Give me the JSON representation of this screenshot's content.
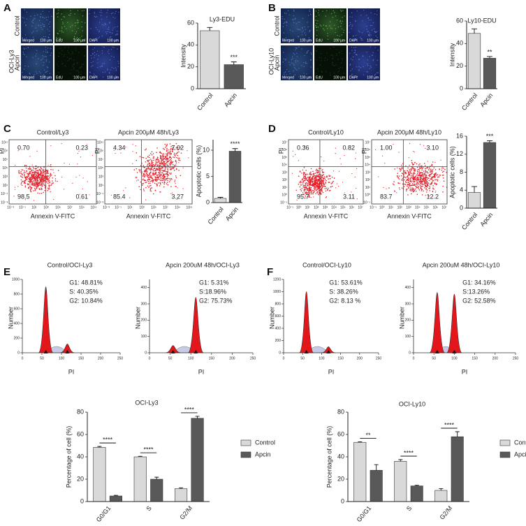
{
  "panel_labels": [
    "A",
    "B",
    "C",
    "D",
    "E",
    "F"
  ],
  "microscopy": [
    {
      "cell_line": "OCI-Ly3",
      "rows": [
        "Control",
        "Apcin"
      ],
      "channels": [
        "Merged",
        "EdU",
        "DAPI"
      ],
      "scale_bar": "100 µm"
    },
    {
      "cell_line": "OCI-Ly10",
      "rows": [
        "Control",
        "Apcin"
      ],
      "channels": [
        "Merged",
        "EdU",
        "DAPI"
      ],
      "scale_bar": "100 µm"
    }
  ],
  "flow": [
    {
      "xlabel": "Annexin V-FITC",
      "ylabel": "PI",
      "ticks": [
        "10⁻³",
        "10⁻¹",
        "10¹",
        "10³",
        "10⁵",
        "10⁷",
        "10⁹",
        "10¹¹"
      ],
      "plots": [
        {
          "title": "Control/Ly3",
          "quadrants": [
            "0.70",
            "0.23",
            "98.5",
            "0.61"
          ]
        },
        {
          "title": "Apcin 200μM 48h/Ly3",
          "quadrants": [
            "4.34",
            "7.02",
            "85.4",
            "3.27"
          ]
        }
      ]
    },
    {
      "xlabel": "Annexin V-FITC",
      "ylabel": "PI",
      "ticks": [
        "10⁻¹",
        "10⁰",
        "10¹",
        "10²",
        "10³",
        "10⁴",
        "10⁵",
        "10⁶",
        "10⁷"
      ],
      "plots": [
        {
          "title": "Control/Ly10",
          "quadrants": [
            "0.36",
            "0.82",
            "95.7",
            "3.11"
          ]
        },
        {
          "title": "Apcin 200μM 48h/Ly10",
          "quadrants": [
            "1.00",
            "3.10",
            "83.7",
            "12.2"
          ]
        }
      ]
    }
  ],
  "cell_cycle": [
    {
      "title": "Control/OCI-Ly3",
      "stats": [
        "G1: 48.81%",
        "S: 40.35%",
        "G2: 10.84%"
      ],
      "xlabel": "PI",
      "ylabel": "Number",
      "xlim": [
        0,
        250
      ],
      "xticks": [
        0,
        50,
        100,
        150,
        200,
        250
      ],
      "ylim": [
        0,
        1000
      ],
      "yticks": [
        0,
        200,
        400,
        600,
        800,
        1000
      ],
      "peaks": [
        {
          "x": 60,
          "count": 900
        },
        {
          "x": 115,
          "count": 120
        }
      ]
    },
    {
      "title": "Apcin 200uM 48h/OCI-Ly3",
      "stats": [
        "G1: 5.31%",
        "S:18.96%",
        "G2: 75.73%"
      ],
      "xlabel": "PI",
      "ylabel": "Number",
      "xlim": [
        0,
        250
      ],
      "xticks": [
        0,
        50,
        100,
        150,
        200,
        250
      ],
      "ylim": [
        0,
        450
      ],
      "yticks": [
        0,
        100,
        200,
        300,
        400
      ],
      "peaks": [
        {
          "x": 57,
          "count": 45
        },
        {
          "x": 112,
          "count": 340
        }
      ]
    },
    {
      "title": "Control/OCI-Ly10",
      "stats": [
        "G1: 53.61%",
        "S: 38.26%",
        "G2: 8.13 %"
      ],
      "xlabel": "PI",
      "ylabel": "Number",
      "xlim": [
        0,
        250
      ],
      "xticks": [
        0,
        50,
        100,
        150,
        200,
        250
      ],
      "ylim": [
        0,
        1200
      ],
      "yticks": [
        0,
        200,
        400,
        600,
        800,
        1000,
        1200
      ],
      "peaks": [
        {
          "x": 60,
          "count": 1000
        },
        {
          "x": 118,
          "count": 100
        }
      ]
    },
    {
      "title": "Apcin 200uM 48h/OCI-Ly10",
      "stats": [
        "G1: 34.16%",
        "S:13.26%",
        "G2: 52.58%"
      ],
      "xlabel": "PI",
      "ylabel": "Number",
      "xlim": [
        0,
        250
      ],
      "xticks": [
        0,
        50,
        100,
        150,
        200,
        250
      ],
      "ylim": [
        0,
        450
      ],
      "yticks": [
        0,
        100,
        200,
        300,
        400
      ],
      "peaks": [
        {
          "x": 58,
          "count": 370
        },
        {
          "x": 100,
          "count": 360
        }
      ]
    }
  ],
  "chart_data": [
    {
      "type": "bar",
      "title": "Ly3-EDU",
      "ylabel": "Intensity",
      "categories": [
        "Control",
        "Apcin"
      ],
      "values": [
        53,
        22
      ],
      "errors": [
        3,
        2.5
      ],
      "colors": [
        "#d9d9d9",
        "#595959"
      ],
      "significance": "***",
      "ylim": [
        0,
        60
      ],
      "yticks": [
        0,
        20,
        40,
        60
      ]
    },
    {
      "type": "bar",
      "title": "Ly10-EDU",
      "ylabel": "Intensity",
      "categories": [
        "Control",
        "Apcin"
      ],
      "values": [
        49,
        27
      ],
      "errors": [
        4,
        1.5
      ],
      "colors": [
        "#d9d9d9",
        "#595959"
      ],
      "significance": "**",
      "ylim": [
        0,
        60
      ],
      "yticks": [
        0,
        20,
        40,
        60
      ]
    },
    {
      "type": "bar",
      "ylabel": "Apoptotic cells (%)",
      "categories": [
        "Control",
        "Apcin"
      ],
      "values": [
        0.8,
        9.8
      ],
      "errors": [
        0.2,
        0.5
      ],
      "colors": [
        "#d9d9d9",
        "#595959"
      ],
      "significance": "****",
      "ylim": [
        0,
        12
      ],
      "yticks": [
        0,
        5,
        10
      ]
    },
    {
      "type": "bar",
      "ylabel": "Apoptotic cells (%)",
      "categories": [
        "Control",
        "Apcin"
      ],
      "values": [
        3.5,
        14.6
      ],
      "errors": [
        1.3,
        0.4
      ],
      "colors": [
        "#d9d9d9",
        "#595959"
      ],
      "significance": "***",
      "ylim": [
        0,
        16
      ],
      "yticks": [
        0,
        4,
        8,
        12,
        16
      ]
    },
    {
      "type": "grouped_bar",
      "title": "OCI-Ly3",
      "ylabel": "Percentage of cell (%)",
      "categories": [
        "G0/G1",
        "S",
        "G2/M"
      ],
      "series": [
        {
          "name": "Control",
          "color": "#d9d9d9",
          "values": [
            48.5,
            40,
            11.5
          ],
          "errors": [
            0.8,
            0.5,
            0.8
          ]
        },
        {
          "name": "Apcin",
          "color": "#595959",
          "values": [
            5,
            20,
            74.5
          ],
          "errors": [
            0.6,
            1.8,
            1.8
          ]
        }
      ],
      "significance": [
        "****",
        "****",
        "****"
      ],
      "ylim": [
        0,
        80
      ],
      "yticks": [
        0,
        20,
        40,
        60,
        80
      ]
    },
    {
      "type": "grouped_bar",
      "title": "OCI-Ly10",
      "ylabel": "Percentage of cell (%)",
      "categories": [
        "G0/G1",
        "S",
        "G2/M"
      ],
      "series": [
        {
          "name": "Control",
          "color": "#d9d9d9",
          "values": [
            53,
            36,
            10
          ],
          "errors": [
            0.5,
            1.5,
            1.5
          ]
        },
        {
          "name": "Apcin",
          "color": "#595959",
          "values": [
            28,
            14,
            58
          ],
          "errors": [
            5,
            0.6,
            4.5
          ]
        }
      ],
      "significance": [
        "**",
        "****",
        "****"
      ],
      "ylim": [
        0,
        80
      ],
      "yticks": [
        0,
        20,
        40,
        60,
        80
      ]
    }
  ]
}
